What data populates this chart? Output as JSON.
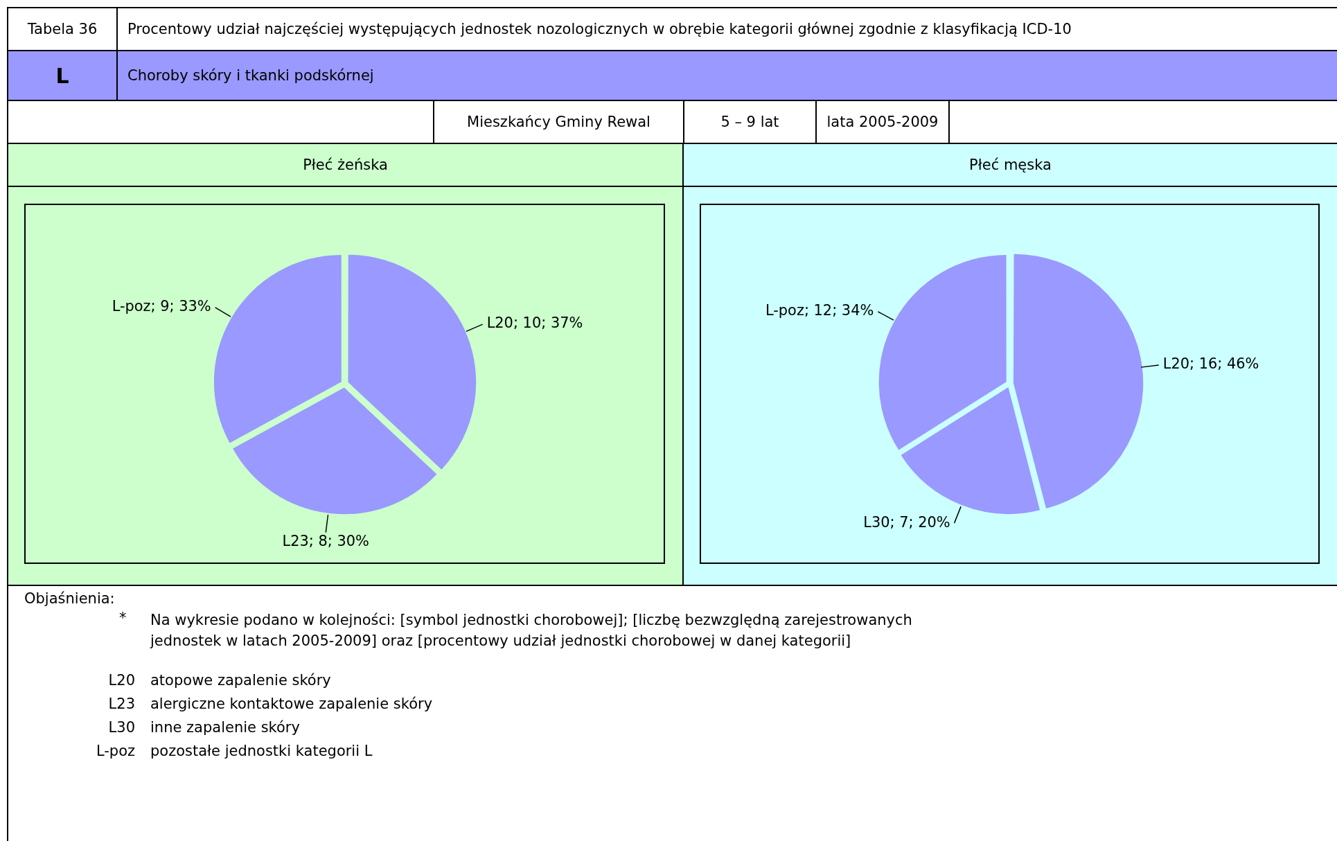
{
  "chart_data": [
    {
      "type": "other",
      "annotations": [
        "Tabela 36",
        "Procentowy udział najczęściej występujących jednostek nozologicznych w obrębie kategorii głównej zgodnie z klasyfikacją ICD-10",
        "L",
        "Choroby skóry i tkanki podskórnej",
        "Mieszkańcy Gminy Rewal",
        "5 – 9 lat",
        "lata 2005-2009"
      ]
    },
    {
      "type": "pie",
      "title": "Płeć żeńska",
      "categories": [
        "L20",
        "L23",
        "L-poz"
      ],
      "values": [
        37,
        30,
        33
      ],
      "value_labels": [
        "; 10; 37%",
        "; 8; 30%",
        "; 9; 33%"
      ],
      "colors": [
        "#9999ff",
        "#9999ff",
        "#9999ff"
      ],
      "legend": false
    },
    {
      "type": "pie",
      "title": "Płeć męska",
      "categories": [
        "L20",
        "L30",
        "L-poz"
      ],
      "values": [
        46,
        20,
        34
      ],
      "value_labels": [
        "; 16; 46%",
        "; 7; 20%",
        "; 12; 34%"
      ],
      "colors": [
        "#9999ff",
        "#9999ff",
        "#9999ff"
      ],
      "legend": false
    },
    {
      "type": "other",
      "annotations": [
        "Objaśnienia:",
        "*",
        "Na wykresie podano w kolejności: [symbol jednostki chorobowej]; [liczbę bezwzględną zarejestrowanych jednostek w latach 2005-2009] oraz [procentowy udział jednostki chorobowej w danej kategorii]",
        "L20",
        "atopowe zapalenie skóry",
        "L23",
        "alergiczne kontaktowe zapalenie skóry",
        "L30",
        "inne zapalenie skóry",
        "L-poz",
        "pozostałe jednostki kategorii L"
      ]
    }
  ]
}
